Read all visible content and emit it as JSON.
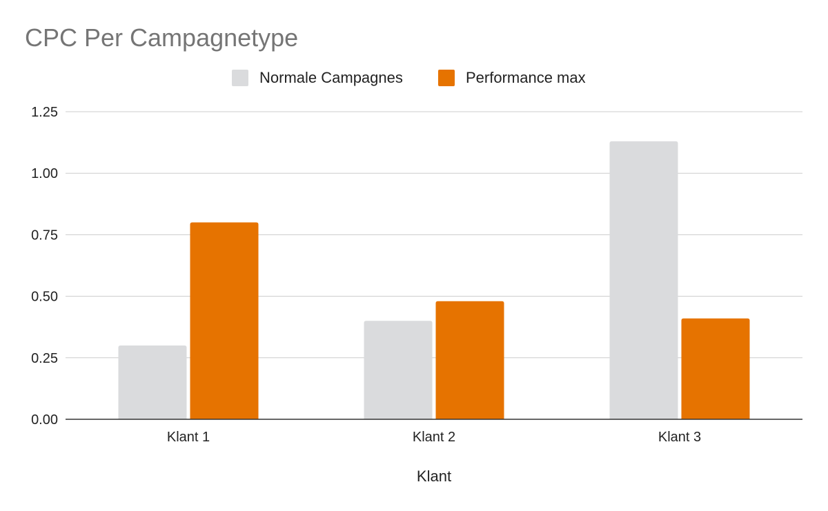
{
  "chart_data": {
    "type": "bar",
    "title": "CPC Per Campagnetype",
    "xlabel": "Klant",
    "ylabel": "",
    "categories": [
      "Klant 1",
      "Klant 2",
      "Klant 3"
    ],
    "series": [
      {
        "name": "Normale Campagnes",
        "color": "#dadbdd",
        "values": [
          0.3,
          0.4,
          1.13
        ]
      },
      {
        "name": "Performance max",
        "color": "#e67300",
        "values": [
          0.8,
          0.48,
          0.41
        ]
      }
    ],
    "ylim": [
      0,
      1.25
    ],
    "yticks": [
      "0.00",
      "0.25",
      "0.50",
      "0.75",
      "1.00",
      "1.25"
    ],
    "grid": true,
    "legend_position": "top-center"
  }
}
